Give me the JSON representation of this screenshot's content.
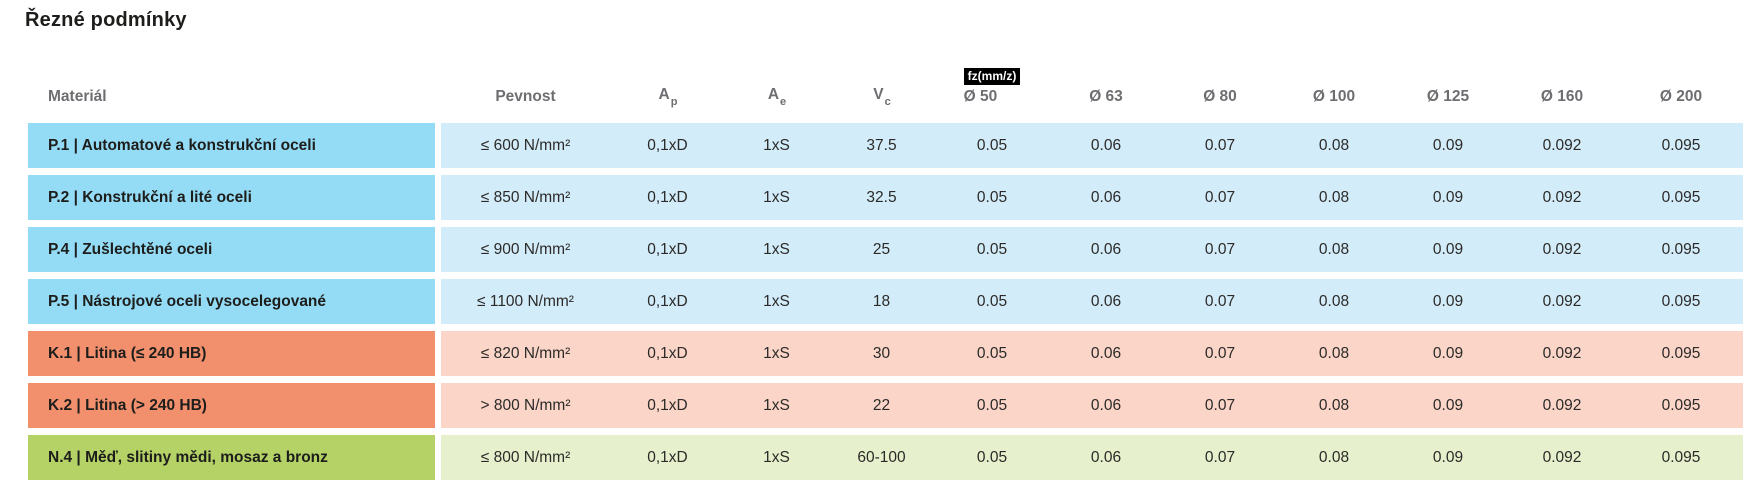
{
  "page_title": "Řezné podmínky",
  "table": {
    "headers": {
      "material": "Materiál",
      "pevnost": "Pevnost",
      "ap": {
        "base": "A",
        "sub": "p"
      },
      "ae": {
        "base": "A",
        "sub": "e"
      },
      "vc": {
        "base": "V",
        "sub": "c"
      },
      "fz_badge": "fz(mm/z)",
      "diameters": [
        "Ø 50",
        "Ø 63",
        "Ø 80",
        "Ø 100",
        "Ø 125",
        "Ø 160",
        "Ø 200"
      ]
    },
    "colors": {
      "steel_dark": "#94dcf5",
      "steel_light": "#d3ecf9",
      "cast_dark": "#f2906e",
      "cast_light": "#fad5c8",
      "nonferrous_dark": "#b4d266",
      "nonferrous_light": "#e6f0cc",
      "header_text": "#6d6e71",
      "badge_bg": "#000000",
      "badge_text": "#ffffff",
      "body_text": "#1d1d1b"
    },
    "rows": [
      {
        "palette": "steel",
        "material": "P.1 | Automatové a konstrukční oceli",
        "pevnost": "≤ 600 N/mm²",
        "ap": "0,1xD",
        "ae": "1xS",
        "vc": "37.5",
        "fz": [
          "0.05",
          "0.06",
          "0.07",
          "0.08",
          "0.09",
          "0.092",
          "0.095"
        ]
      },
      {
        "palette": "steel",
        "material": "P.2 | Konstrukční a lité oceli",
        "pevnost": "≤ 850 N/mm²",
        "ap": "0,1xD",
        "ae": "1xS",
        "vc": "32.5",
        "fz": [
          "0.05",
          "0.06",
          "0.07",
          "0.08",
          "0.09",
          "0.092",
          "0.095"
        ]
      },
      {
        "palette": "steel",
        "material": "P.4 | Zušlechtěné oceli",
        "pevnost": "≤ 900 N/mm²",
        "ap": "0,1xD",
        "ae": "1xS",
        "vc": "25",
        "fz": [
          "0.05",
          "0.06",
          "0.07",
          "0.08",
          "0.09",
          "0.092",
          "0.095"
        ]
      },
      {
        "palette": "steel",
        "material": "P.5 | Nástrojové oceli vysocelegované",
        "pevnost": "≤ 1100 N/mm²",
        "ap": "0,1xD",
        "ae": "1xS",
        "vc": "18",
        "fz": [
          "0.05",
          "0.06",
          "0.07",
          "0.08",
          "0.09",
          "0.092",
          "0.095"
        ]
      },
      {
        "palette": "cast",
        "material": "K.1 | Litina (≤ 240 HB)",
        "pevnost": "≤ 820 N/mm²",
        "ap": "0,1xD",
        "ae": "1xS",
        "vc": "30",
        "fz": [
          "0.05",
          "0.06",
          "0.07",
          "0.08",
          "0.09",
          "0.092",
          "0.095"
        ]
      },
      {
        "palette": "cast",
        "material": "K.2 | Litina (> 240 HB)",
        "pevnost": "> 800 N/mm²",
        "ap": "0,1xD",
        "ae": "1xS",
        "vc": "22",
        "fz": [
          "0.05",
          "0.06",
          "0.07",
          "0.08",
          "0.09",
          "0.092",
          "0.095"
        ]
      },
      {
        "palette": "nonferrous",
        "material": "N.4 | Měď, slitiny mědi, mosaz a bronz",
        "pevnost": "≤ 800 N/mm²",
        "ap": "0,1xD",
        "ae": "1xS",
        "vc": "60-100",
        "fz": [
          "0.05",
          "0.06",
          "0.07",
          "0.08",
          "0.09",
          "0.092",
          "0.095"
        ]
      }
    ]
  }
}
